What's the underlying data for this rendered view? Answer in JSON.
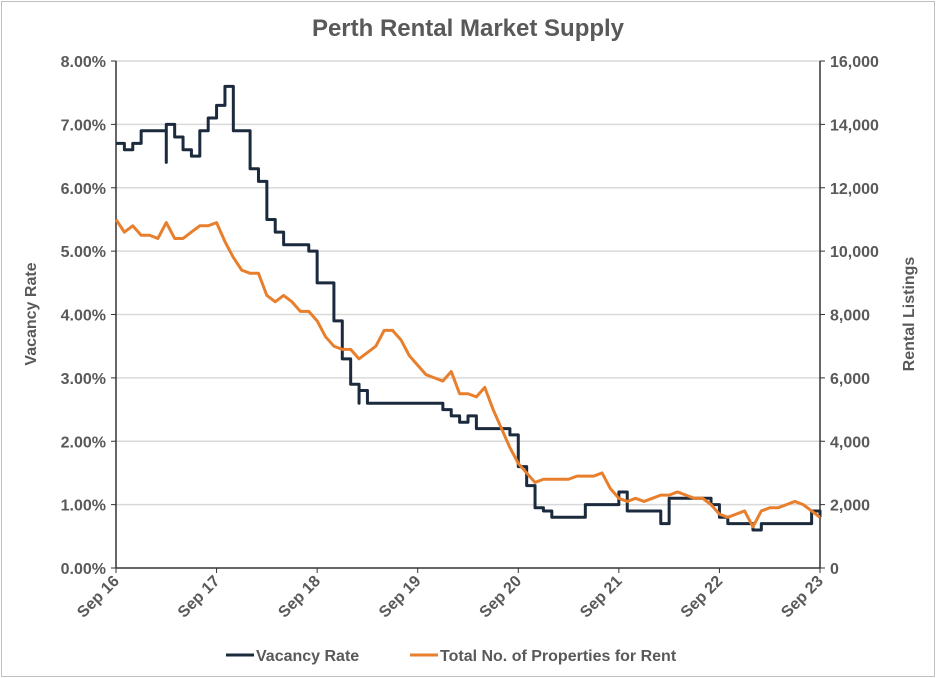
{
  "chart_data": {
    "type": "line",
    "title": "Perth Rental Market Supply",
    "ylabel_left": "Vacancy Rate",
    "ylabel_right": "Rental Listings",
    "ylim_left": [
      0,
      8
    ],
    "ylim_right": [
      0,
      16000
    ],
    "yticks_left": [
      "0.00%",
      "1.00%",
      "2.00%",
      "3.00%",
      "4.00%",
      "5.00%",
      "6.00%",
      "7.00%",
      "8.00%"
    ],
    "yticks_right": [
      "0",
      "2,000",
      "4,000",
      "6,000",
      "8,000",
      "10,000",
      "12,000",
      "14,000",
      "16,000"
    ],
    "xticks": [
      "Sep 16",
      "Sep 17",
      "Sep 18",
      "Sep 19",
      "Sep 20",
      "Sep 21",
      "Sep 22",
      "Sep 23"
    ],
    "xlim": [
      "2016-09",
      "2023-09"
    ],
    "grid": "horizontal",
    "legend_position": "bottom",
    "colors": {
      "vacancy": "#1b2a3c",
      "listings": "#e87f2c",
      "grid": "#d9d9d9",
      "text": "#595959"
    },
    "series": [
      {
        "name": "Vacancy Rate",
        "axis": "left",
        "style": "step",
        "unit": "%",
        "points": [
          [
            "2016-09",
            6.7
          ],
          [
            "2016-10",
            6.6
          ],
          [
            "2016-11",
            6.7
          ],
          [
            "2016-12",
            6.9
          ],
          [
            "2017-01",
            6.9
          ],
          [
            "2017-02",
            6.9
          ],
          [
            "2017-03",
            6.4
          ],
          [
            "2017-03",
            7.0
          ],
          [
            "2017-04",
            6.8
          ],
          [
            "2017-05",
            6.6
          ],
          [
            "2017-06",
            6.5
          ],
          [
            "2017-07",
            6.9
          ],
          [
            "2017-08",
            7.1
          ],
          [
            "2017-09",
            7.3
          ],
          [
            "2017-10",
            7.6
          ],
          [
            "2017-11",
            6.9
          ],
          [
            "2017-12",
            6.9
          ],
          [
            "2018-01",
            6.3
          ],
          [
            "2018-02",
            6.1
          ],
          [
            "2018-03",
            5.5
          ],
          [
            "2018-04",
            5.3
          ],
          [
            "2018-05",
            5.1
          ],
          [
            "2018-06",
            5.1
          ],
          [
            "2018-07",
            5.1
          ],
          [
            "2018-08",
            5.0
          ],
          [
            "2018-09",
            4.5
          ],
          [
            "2018-10",
            4.5
          ],
          [
            "2018-11",
            3.9
          ],
          [
            "2018-12",
            3.3
          ],
          [
            "2019-01",
            2.9
          ],
          [
            "2019-02",
            2.6
          ],
          [
            "2019-02",
            2.8
          ],
          [
            "2019-03",
            2.6
          ],
          [
            "2019-04",
            2.6
          ],
          [
            "2019-05",
            2.6
          ],
          [
            "2019-06",
            2.6
          ],
          [
            "2019-07",
            2.6
          ],
          [
            "2019-08",
            2.6
          ],
          [
            "2019-09",
            2.6
          ],
          [
            "2019-10",
            2.6
          ],
          [
            "2019-11",
            2.6
          ],
          [
            "2019-12",
            2.5
          ],
          [
            "2020-01",
            2.4
          ],
          [
            "2020-02",
            2.3
          ],
          [
            "2020-03",
            2.4
          ],
          [
            "2020-04",
            2.2
          ],
          [
            "2020-05",
            2.2
          ],
          [
            "2020-06",
            2.2
          ],
          [
            "2020-07",
            2.2
          ],
          [
            "2020-08",
            2.1
          ],
          [
            "2020-09",
            1.6
          ],
          [
            "2020-10",
            1.3
          ],
          [
            "2020-11",
            0.95
          ],
          [
            "2020-12",
            0.9
          ],
          [
            "2021-01",
            0.8
          ],
          [
            "2021-02",
            0.8
          ],
          [
            "2021-03",
            0.8
          ],
          [
            "2021-04",
            0.8
          ],
          [
            "2021-05",
            1.0
          ],
          [
            "2021-06",
            1.0
          ],
          [
            "2021-07",
            1.0
          ],
          [
            "2021-08",
            1.0
          ],
          [
            "2021-09",
            1.2
          ],
          [
            "2021-10",
            0.9
          ],
          [
            "2021-11",
            0.9
          ],
          [
            "2021-12",
            0.9
          ],
          [
            "2022-01",
            0.9
          ],
          [
            "2022-02",
            0.7
          ],
          [
            "2022-03",
            1.1
          ],
          [
            "2022-04",
            1.1
          ],
          [
            "2022-05",
            1.1
          ],
          [
            "2022-06",
            1.1
          ],
          [
            "2022-07",
            1.1
          ],
          [
            "2022-08",
            1.0
          ],
          [
            "2022-09",
            0.8
          ],
          [
            "2022-10",
            0.7
          ],
          [
            "2022-11",
            0.7
          ],
          [
            "2022-12",
            0.7
          ],
          [
            "2023-01",
            0.6
          ],
          [
            "2023-02",
            0.7
          ],
          [
            "2023-03",
            0.7
          ],
          [
            "2023-04",
            0.7
          ],
          [
            "2023-05",
            0.7
          ],
          [
            "2023-06",
            0.7
          ],
          [
            "2023-07",
            0.7
          ],
          [
            "2023-08",
            0.9
          ],
          [
            "2023-09",
            0.8
          ]
        ]
      },
      {
        "name": "Total No. of Properties for Rent",
        "axis": "right",
        "style": "line",
        "points": [
          [
            "2016-09",
            11000
          ],
          [
            "2016-10",
            10600
          ],
          [
            "2016-11",
            10800
          ],
          [
            "2016-12",
            10500
          ],
          [
            "2017-01",
            10500
          ],
          [
            "2017-02",
            10400
          ],
          [
            "2017-03",
            10900
          ],
          [
            "2017-04",
            10400
          ],
          [
            "2017-05",
            10400
          ],
          [
            "2017-06",
            10600
          ],
          [
            "2017-07",
            10800
          ],
          [
            "2017-08",
            10800
          ],
          [
            "2017-09",
            10900
          ],
          [
            "2017-10",
            10300
          ],
          [
            "2017-11",
            9800
          ],
          [
            "2017-12",
            9400
          ],
          [
            "2018-01",
            9300
          ],
          [
            "2018-02",
            9300
          ],
          [
            "2018-03",
            8600
          ],
          [
            "2018-04",
            8400
          ],
          [
            "2018-05",
            8600
          ],
          [
            "2018-06",
            8400
          ],
          [
            "2018-07",
            8100
          ],
          [
            "2018-08",
            8100
          ],
          [
            "2018-09",
            7800
          ],
          [
            "2018-10",
            7300
          ],
          [
            "2018-11",
            7000
          ],
          [
            "2018-12",
            6900
          ],
          [
            "2019-01",
            6900
          ],
          [
            "2019-02",
            6600
          ],
          [
            "2019-03",
            6800
          ],
          [
            "2019-04",
            7000
          ],
          [
            "2019-05",
            7500
          ],
          [
            "2019-06",
            7500
          ],
          [
            "2019-07",
            7200
          ],
          [
            "2019-08",
            6700
          ],
          [
            "2019-09",
            6400
          ],
          [
            "2019-10",
            6100
          ],
          [
            "2019-11",
            6000
          ],
          [
            "2019-12",
            5900
          ],
          [
            "2020-01",
            6200
          ],
          [
            "2020-02",
            5500
          ],
          [
            "2020-03",
            5500
          ],
          [
            "2020-04",
            5400
          ],
          [
            "2020-05",
            5700
          ],
          [
            "2020-06",
            5000
          ],
          [
            "2020-07",
            4400
          ],
          [
            "2020-08",
            3800
          ],
          [
            "2020-09",
            3300
          ],
          [
            "2020-10",
            3000
          ],
          [
            "2020-11",
            2700
          ],
          [
            "2020-12",
            2800
          ],
          [
            "2021-01",
            2800
          ],
          [
            "2021-02",
            2800
          ],
          [
            "2021-03",
            2800
          ],
          [
            "2021-04",
            2900
          ],
          [
            "2021-05",
            2900
          ],
          [
            "2021-06",
            2900
          ],
          [
            "2021-07",
            3000
          ],
          [
            "2021-08",
            2500
          ],
          [
            "2021-09",
            2200
          ],
          [
            "2021-10",
            2100
          ],
          [
            "2021-11",
            2200
          ],
          [
            "2021-12",
            2100
          ],
          [
            "2022-01",
            2200
          ],
          [
            "2022-02",
            2300
          ],
          [
            "2022-03",
            2300
          ],
          [
            "2022-04",
            2400
          ],
          [
            "2022-05",
            2300
          ],
          [
            "2022-06",
            2200
          ],
          [
            "2022-07",
            2200
          ],
          [
            "2022-08",
            2000
          ],
          [
            "2022-09",
            1700
          ],
          [
            "2022-10",
            1600
          ],
          [
            "2022-11",
            1700
          ],
          [
            "2022-12",
            1800
          ],
          [
            "2023-01",
            1300
          ],
          [
            "2023-02",
            1800
          ],
          [
            "2023-03",
            1900
          ],
          [
            "2023-04",
            1900
          ],
          [
            "2023-05",
            2000
          ],
          [
            "2023-06",
            2100
          ],
          [
            "2023-07",
            2000
          ],
          [
            "2023-08",
            1800
          ],
          [
            "2023-09",
            1600
          ]
        ]
      }
    ]
  }
}
